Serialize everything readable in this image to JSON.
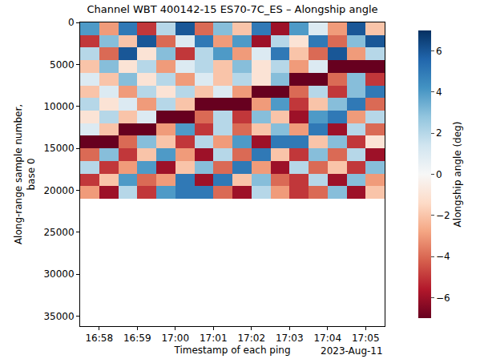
{
  "chart_data": {
    "type": "heatmap",
    "title": "Channel WBT 400142-15 ES70-7C_ES – Alongship angle",
    "x_label": "Timestamp of each ping",
    "x_offset_label": "2023-Aug-11",
    "y_label": "Along-range sample number,\nbase 0",
    "x": [
      "2023-08-11 16:57:45",
      "2023-08-11 16:58:15",
      "2023-08-11 16:58:45",
      "2023-08-11 16:59:15",
      "2023-08-11 16:59:45",
      "2023-08-11 17:00:15",
      "2023-08-11 17:00:45",
      "2023-08-11 17:01:15",
      "2023-08-11 17:01:45",
      "2023-08-11 17:02:15",
      "2023-08-11 17:02:45",
      "2023-08-11 17:03:15",
      "2023-08-11 17:03:45",
      "2023-08-11 17:04:15",
      "2023-08-11 17:04:45",
      "2023-08-11 17:05:15"
    ],
    "y": [
      750,
      2250,
      3750,
      5250,
      6750,
      8250,
      9750,
      11250,
      12750,
      14250,
      15750,
      17250,
      18750,
      20250
    ],
    "cells": [
      [
        4,
        -3,
        5,
        -5,
        2,
        6,
        -4,
        3,
        -2,
        5,
        -6,
        4,
        1,
        -3,
        6,
        -2
      ],
      [
        -5,
        3,
        -2,
        6,
        -4,
        1,
        5,
        -3,
        4,
        -6,
        2,
        -1,
        5,
        -4,
        3,
        6
      ],
      [
        2,
        -4,
        6,
        -1,
        3,
        -5,
        2,
        4,
        -3,
        1,
        5,
        -2,
        -4,
        6,
        -3,
        2
      ],
      [
        -2,
        3,
        -1,
        2,
        -3,
        1,
        2,
        -2,
        3,
        -1,
        2,
        -3,
        1,
        -7,
        -7,
        -7
      ],
      [
        1,
        -2,
        3,
        -1,
        2,
        -3,
        1,
        -2,
        2,
        -1,
        3,
        -7,
        -7,
        -4,
        3,
        -5
      ],
      [
        -2,
        1,
        -3,
        2,
        -1,
        2,
        -2,
        1,
        -3,
        -7,
        -7,
        -4,
        2,
        -5,
        3,
        5
      ],
      [
        2,
        -1,
        1,
        -3,
        2,
        -2,
        -7,
        -7,
        -7,
        -3,
        4,
        -5,
        -2,
        3,
        5,
        -4
      ],
      [
        -1,
        2,
        -2,
        1,
        -7,
        -7,
        -4,
        2,
        -5,
        3,
        -2,
        -6,
        4,
        5,
        -3,
        2
      ],
      [
        1,
        -2,
        -7,
        -7,
        -3,
        4,
        -5,
        2,
        -4,
        -2,
        3,
        -3,
        5,
        -6,
        2,
        -4
      ],
      [
        -7,
        -7,
        -4,
        3,
        -2,
        -5,
        2,
        -3,
        4,
        -6,
        5,
        5,
        -2,
        3,
        -5,
        -1
      ],
      [
        -4,
        3,
        -5,
        -2,
        4,
        -3,
        -6,
        2,
        -4,
        5,
        -2,
        -5,
        3,
        -4,
        2,
        -6
      ],
      [
        2,
        -5,
        -3,
        4,
        -6,
        -2,
        3,
        -4,
        5,
        -3,
        -6,
        2,
        -4,
        -2,
        -5,
        3
      ],
      [
        -5,
        -2,
        4,
        -4,
        -3,
        5,
        -6,
        5,
        -2,
        3,
        -4,
        -5,
        2,
        -6,
        3,
        -3
      ],
      [
        -3,
        -6,
        2,
        -5,
        4,
        5,
        5,
        -4,
        -6,
        2,
        -3,
        -5,
        -4,
        3,
        -6,
        -2
      ]
    ],
    "xlim": [
      "2023-08-11 16:57:30",
      "2023-08-11 17:05:30"
    ],
    "xticks": [
      {
        "value": "2023-08-11 16:58:00",
        "label": "16:58"
      },
      {
        "value": "2023-08-11 16:59:00",
        "label": "16:59"
      },
      {
        "value": "2023-08-11 17:00:00",
        "label": "17:00"
      },
      {
        "value": "2023-08-11 17:01:00",
        "label": "17:01"
      },
      {
        "value": "2023-08-11 17:02:00",
        "label": "17:02"
      },
      {
        "value": "2023-08-11 17:03:00",
        "label": "17:03"
      },
      {
        "value": "2023-08-11 17:04:00",
        "label": "17:04"
      },
      {
        "value": "2023-08-11 17:05:00",
        "label": "17:05"
      }
    ],
    "ylim": [
      36200,
      0
    ],
    "yticks": [
      0,
      5000,
      10000,
      15000,
      20000,
      25000,
      30000,
      35000
    ],
    "colorbar_label": "Alongship angle (deg)",
    "colorbar_range": [
      -7,
      7
    ],
    "colorbar_ticks": [
      {
        "value": -6,
        "label": "−6"
      },
      {
        "value": -4,
        "label": "−4"
      },
      {
        "value": -2,
        "label": "−2"
      },
      0,
      2,
      4,
      6
    ],
    "grid": false
  }
}
